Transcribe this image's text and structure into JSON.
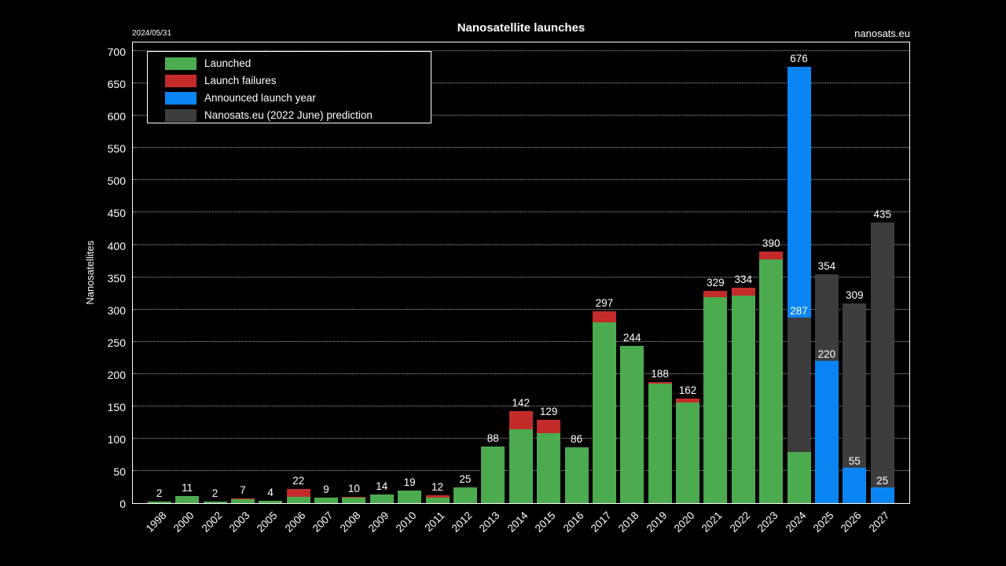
{
  "header": {
    "date_stamp": "2024/05/31",
    "site_link": "nanosats.eu"
  },
  "colors": {
    "launched": "#4caa4f",
    "failures": "#c32b2b",
    "announced": "#0b84f3",
    "prediction": "#3d3d3d",
    "background": "#000000",
    "text": "#ffffff",
    "grid": "#a8a8a8",
    "axis": "#ffffff"
  },
  "chart_data": {
    "type": "bar",
    "stacked": true,
    "title": "Nanosatellite launches",
    "xlabel": "",
    "ylabel": "Nanosatellites",
    "ylim": [
      0,
      716
    ],
    "yticks": [
      0,
      50,
      100,
      150,
      200,
      250,
      300,
      350,
      400,
      450,
      500,
      550,
      600,
      650,
      700
    ],
    "grid": "horizontal-dotted",
    "legend_position": "upper-left",
    "legend": [
      {
        "key": "launched",
        "label": "Launched"
      },
      {
        "key": "failures",
        "label": "Launch failures"
      },
      {
        "key": "announced",
        "label": "Announced launch year"
      },
      {
        "key": "prediction",
        "label": "Nanosats.eu (2022 June) prediction"
      }
    ],
    "categories": [
      "1998",
      "2000",
      "2002",
      "2003",
      "2005",
      "2006",
      "2007",
      "2008",
      "2009",
      "2010",
      "2011",
      "2012",
      "2013",
      "2014",
      "2015",
      "2016",
      "2017",
      "2018",
      "2019",
      "2020",
      "2021",
      "2022",
      "2023",
      "2024",
      "2025",
      "2026",
      "2027"
    ],
    "bars": [
      {
        "year": "1998",
        "total_label": "2",
        "segments": [
          {
            "key": "launched",
            "value": 2
          }
        ]
      },
      {
        "year": "2000",
        "total_label": "11",
        "segments": [
          {
            "key": "launched",
            "value": 11
          }
        ]
      },
      {
        "year": "2002",
        "total_label": "2",
        "segments": [
          {
            "key": "launched",
            "value": 2
          }
        ]
      },
      {
        "year": "2003",
        "total_label": "7",
        "segments": [
          {
            "key": "launched",
            "value": 6
          },
          {
            "key": "failures",
            "value": 1
          }
        ]
      },
      {
        "year": "2005",
        "total_label": "4",
        "segments": [
          {
            "key": "launched",
            "value": 4
          }
        ]
      },
      {
        "year": "2006",
        "total_label": "22",
        "segments": [
          {
            "key": "launched",
            "value": 10
          },
          {
            "key": "failures",
            "value": 12
          }
        ]
      },
      {
        "year": "2007",
        "total_label": "9",
        "segments": [
          {
            "key": "launched",
            "value": 9
          }
        ]
      },
      {
        "year": "2008",
        "total_label": "10",
        "segments": [
          {
            "key": "launched",
            "value": 9
          },
          {
            "key": "failures",
            "value": 1
          }
        ]
      },
      {
        "year": "2009",
        "total_label": "14",
        "segments": [
          {
            "key": "launched",
            "value": 14
          }
        ]
      },
      {
        "year": "2010",
        "total_label": "19",
        "segments": [
          {
            "key": "launched",
            "value": 19
          }
        ]
      },
      {
        "year": "2011",
        "total_label": "12",
        "segments": [
          {
            "key": "launched",
            "value": 9
          },
          {
            "key": "failures",
            "value": 3
          }
        ]
      },
      {
        "year": "2012",
        "total_label": "25",
        "segments": [
          {
            "key": "launched",
            "value": 25
          }
        ]
      },
      {
        "year": "2013",
        "total_label": "88",
        "segments": [
          {
            "key": "launched",
            "value": 88
          }
        ]
      },
      {
        "year": "2014",
        "total_label": "142",
        "segments": [
          {
            "key": "launched",
            "value": 114
          },
          {
            "key": "failures",
            "value": 28
          }
        ]
      },
      {
        "year": "2015",
        "total_label": "129",
        "segments": [
          {
            "key": "launched",
            "value": 108
          },
          {
            "key": "failures",
            "value": 21
          }
        ]
      },
      {
        "year": "2016",
        "total_label": "86",
        "segments": [
          {
            "key": "launched",
            "value": 86
          }
        ]
      },
      {
        "year": "2017",
        "total_label": "297",
        "segments": [
          {
            "key": "launched",
            "value": 280
          },
          {
            "key": "failures",
            "value": 17
          }
        ]
      },
      {
        "year": "2018",
        "total_label": "244",
        "segments": [
          {
            "key": "launched",
            "value": 244
          }
        ]
      },
      {
        "year": "2019",
        "total_label": "188",
        "segments": [
          {
            "key": "launched",
            "value": 185
          },
          {
            "key": "failures",
            "value": 3
          }
        ]
      },
      {
        "year": "2020",
        "total_label": "162",
        "segments": [
          {
            "key": "launched",
            "value": 156
          },
          {
            "key": "failures",
            "value": 6
          }
        ]
      },
      {
        "year": "2021",
        "total_label": "329",
        "segments": [
          {
            "key": "launched",
            "value": 319
          },
          {
            "key": "failures",
            "value": 10
          }
        ]
      },
      {
        "year": "2022",
        "total_label": "334",
        "segments": [
          {
            "key": "launched",
            "value": 322
          },
          {
            "key": "failures",
            "value": 12
          }
        ]
      },
      {
        "year": "2023",
        "total_label": "390",
        "segments": [
          {
            "key": "launched",
            "value": 378
          },
          {
            "key": "failures",
            "value": 12
          }
        ]
      },
      {
        "year": "2024",
        "total_label": "676",
        "segments": [
          {
            "key": "launched",
            "value": 79
          },
          {
            "key": "prediction",
            "value": 208
          },
          {
            "key": "announced",
            "value": 389
          }
        ],
        "inner_labels": [
          {
            "text": "287",
            "at": 287
          }
        ]
      },
      {
        "year": "2025",
        "total_label": "354",
        "segments": [
          {
            "key": "announced",
            "value": 220
          },
          {
            "key": "prediction",
            "value": 134
          }
        ],
        "inner_labels": [
          {
            "text": "220",
            "at": 220
          }
        ]
      },
      {
        "year": "2026",
        "total_label": "309",
        "segments": [
          {
            "key": "announced",
            "value": 55
          },
          {
            "key": "prediction",
            "value": 254
          }
        ],
        "inner_labels": [
          {
            "text": "55",
            "at": 55
          }
        ]
      },
      {
        "year": "2027",
        "total_label": "435",
        "segments": [
          {
            "key": "announced",
            "value": 25
          },
          {
            "key": "prediction",
            "value": 410
          }
        ],
        "inner_labels": [
          {
            "text": "25",
            "at": 25
          }
        ]
      }
    ]
  }
}
